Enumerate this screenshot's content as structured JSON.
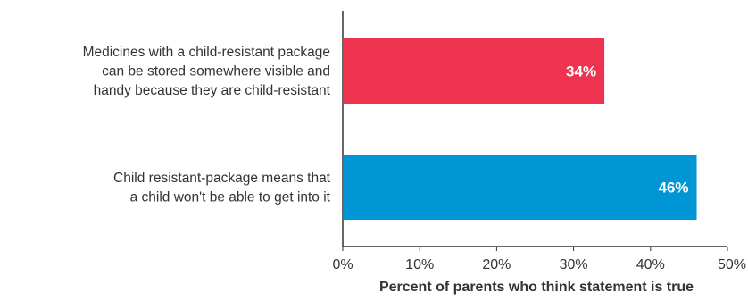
{
  "chart_data": {
    "type": "bar",
    "orientation": "horizontal",
    "categories": [
      [
        "Medicines with a child-resistant package",
        "can be stored somewhere visible and",
        "handy because they are child-resistant"
      ],
      [
        "Child resistant-package means that",
        "a child won't be able to get into it"
      ]
    ],
    "values": [
      34,
      46
    ],
    "value_labels": [
      "34%",
      "46%"
    ],
    "colors": [
      "#ee3350",
      "#0096d6"
    ],
    "xlim": [
      0,
      50
    ],
    "xticks": [
      0,
      10,
      20,
      30,
      40,
      50
    ],
    "xtick_labels": [
      "0%",
      "10%",
      "20%",
      "30%",
      "40%",
      "50%"
    ],
    "xlabel": "Percent of parents who think statement is true",
    "ylabel": "",
    "title": "",
    "grid": false,
    "legend": "none"
  }
}
